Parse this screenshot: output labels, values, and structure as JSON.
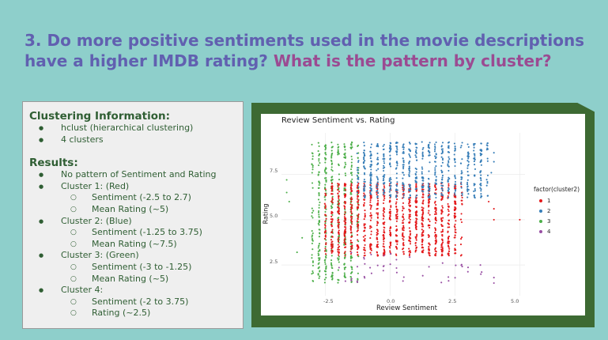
{
  "header": {
    "title_main": "3. Do more positive sentiments used in the movie descriptions have a higher IMDB rating?",
    "title_accent": "What is the pattern by cluster?"
  },
  "info": {
    "heading1": "Clustering Information:",
    "items1": [
      "hclust (hierarchical clustering)",
      "4 clusters"
    ],
    "heading2": "Results:",
    "no_pattern": "No pattern of Sentiment and Rating",
    "clusters": [
      {
        "label": "Cluster 1: (Red)",
        "details": [
          "Sentiment (-2.5 to 2.7)",
          "Mean Rating (~5)"
        ]
      },
      {
        "label": "Cluster 2: (Blue)",
        "details": [
          "Sentiment (-1.25 to 3.75)",
          "Mean Rating (~7.5)"
        ]
      },
      {
        "label": "Cluster 3: (Green)",
        "details": [
          "Sentiment (-3  to -1.25)",
          "Mean Rating (~5)"
        ]
      },
      {
        "label": "Cluster 4:",
        "details": [
          "Sentiment (-2 to 3.75)",
          "Rating (~2.5)"
        ]
      }
    ]
  },
  "colors": {
    "red": "#e41a1c",
    "blue": "#377eb8",
    "green": "#4daf4a",
    "purple": "#984ea3"
  },
  "chart_data": {
    "type": "scatter",
    "title": "Review Sentiment vs. Rating",
    "xlabel": "Review Sentiment",
    "ylabel": "Rating",
    "xticks": [
      "-2.5",
      "0.0",
      "2.5",
      "5.0"
    ],
    "yticks": [
      "2.5",
      "5.0",
      "7.5"
    ],
    "xlim": [
      -4.2,
      5.2
    ],
    "ylim": [
      0.8,
      9.8
    ],
    "legend_title": "factor(cluster2)",
    "legend_position": "right",
    "grid": true,
    "series": [
      {
        "name": "1",
        "color": "#e41a1c",
        "x_range": [
          -2.5,
          2.7
        ],
        "y_range": [
          3.0,
          7.0
        ]
      },
      {
        "name": "2",
        "color": "#377eb8",
        "x_range": [
          -1.25,
          3.75
        ],
        "y_range": [
          6.2,
          9.3
        ]
      },
      {
        "name": "3",
        "color": "#4daf4a",
        "x_range": [
          -3.0,
          -1.25
        ],
        "y_range": [
          1.5,
          9.3
        ]
      },
      {
        "name": "4",
        "color": "#984ea3",
        "x_range": [
          -2.0,
          3.75
        ],
        "y_range": [
          1.5,
          3.2
        ]
      }
    ]
  }
}
